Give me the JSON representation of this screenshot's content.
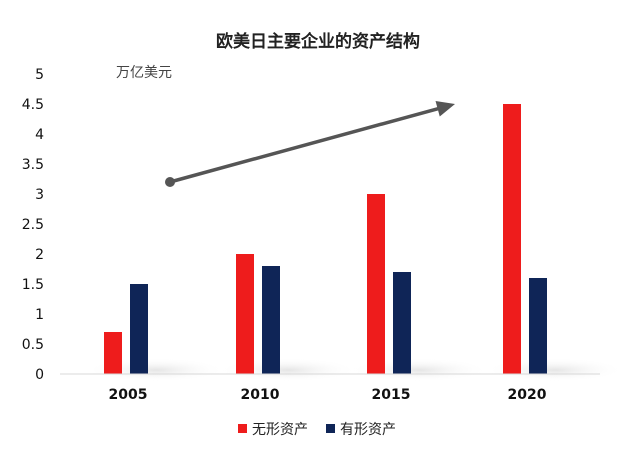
{
  "chart_data": {
    "type": "bar",
    "title": "欧美日主要企业的资产结构",
    "unit_label": "万亿美元",
    "categories": [
      "2005",
      "2010",
      "2015",
      "2020"
    ],
    "series": [
      {
        "name": "无形资产",
        "color": "#ee1c1c",
        "values": [
          0.7,
          2.0,
          3.0,
          4.5
        ]
      },
      {
        "name": "有形资产",
        "color": "#0f2557",
        "values": [
          1.5,
          1.8,
          1.7,
          1.6
        ]
      }
    ],
    "y_ticks": [
      "0",
      "0.5",
      "1",
      "1.5",
      "2",
      "2.5",
      "3",
      "3.5",
      "4",
      "4.5",
      "5"
    ],
    "ylim": [
      0,
      5
    ],
    "grid": false,
    "legend_position": "bottom",
    "trend_arrow": {
      "from": [
        "2005",
        3.2
      ],
      "to": [
        "2020",
        4.5
      ]
    }
  }
}
